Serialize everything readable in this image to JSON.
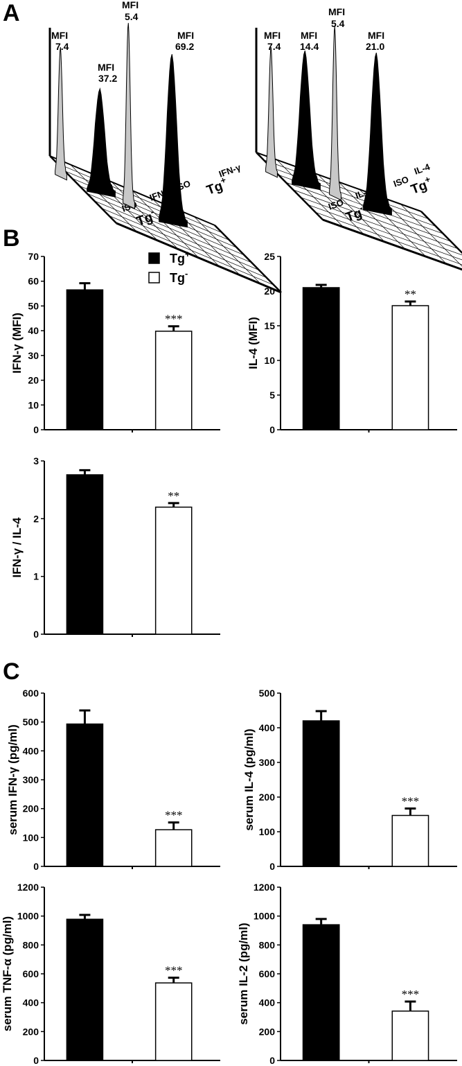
{
  "panels": {
    "a": "A",
    "b": "B",
    "c": "C"
  },
  "legend": {
    "tg_pos": "Tg",
    "tg_pos_sup": "+",
    "tg_neg": "Tg",
    "tg_neg_sup": "-",
    "colors": {
      "tg_pos": "#000000",
      "tg_neg": "#ffffff"
    }
  },
  "histograms": [
    {
      "labels": {
        "iso1": "ISO",
        "cyt1": "IFN-γ",
        "iso2": "ISO",
        "cyt2": "IFN-γ",
        "tg_neg": "Tg",
        "tg_neg_sup": "-",
        "tg_pos": "Tg",
        "tg_pos_sup": "+"
      },
      "mfi": [
        {
          "label": "MFI",
          "value": "7.4",
          "fill": "#c8c8c8"
        },
        {
          "label": "MFI",
          "value": "37.2",
          "fill": "#000000"
        },
        {
          "label": "MFI",
          "value": "5.4",
          "fill": "#c8c8c8"
        },
        {
          "label": "MFI",
          "value": "69.2",
          "fill": "#000000"
        }
      ]
    },
    {
      "labels": {
        "iso1": "ISO",
        "cyt1": "IL-4",
        "iso2": "ISO",
        "cyt2": "IL-4",
        "tg_neg": "Tg",
        "tg_neg_sup": "-",
        "tg_pos": "Tg",
        "tg_pos_sup": "+"
      },
      "mfi": [
        {
          "label": "MFI",
          "value": "7.4",
          "fill": "#c8c8c8"
        },
        {
          "label": "MFI",
          "value": "14.4",
          "fill": "#000000"
        },
        {
          "label": "MFI",
          "value": "5.4",
          "fill": "#c8c8c8"
        },
        {
          "label": "MFI",
          "value": "21.0",
          "fill": "#000000"
        }
      ]
    }
  ],
  "chart_data": [
    {
      "id": "b_ifng",
      "type": "bar",
      "ylabel": "IFN-γ (MFI)",
      "ylim": [
        0,
        70
      ],
      "ticks": [
        0,
        10,
        20,
        30,
        40,
        50,
        60,
        70
      ],
      "categories": [
        "Tg+",
        "Tg-"
      ],
      "values": [
        56.5,
        39.8
      ],
      "errors": [
        2.7,
        2.0
      ],
      "sig": [
        "",
        "***"
      ]
    },
    {
      "id": "b_il4",
      "type": "bar",
      "ylabel": "IL-4 (MFI)",
      "ylim": [
        0,
        25
      ],
      "ticks": [
        0,
        5,
        10,
        15,
        20,
        25
      ],
      "categories": [
        "Tg+",
        "Tg-"
      ],
      "values": [
        20.5,
        17.9
      ],
      "errors": [
        0.4,
        0.6
      ],
      "sig": [
        "",
        "**"
      ]
    },
    {
      "id": "b_ratio",
      "type": "bar",
      "ylabel": "IFN-γ / IL-4",
      "ylim": [
        0,
        3
      ],
      "ticks": [
        0,
        1,
        2,
        3
      ],
      "categories": [
        "Tg+",
        "Tg-"
      ],
      "values": [
        2.76,
        2.2
      ],
      "errors": [
        0.08,
        0.07
      ],
      "sig": [
        "",
        "**"
      ]
    },
    {
      "id": "c_ifng",
      "type": "bar",
      "ylabel": "serum IFN-γ (pg/ml)",
      "ylim": [
        0,
        600
      ],
      "ticks": [
        0,
        100,
        200,
        300,
        400,
        500,
        600
      ],
      "categories": [
        "Tg+",
        "Tg-"
      ],
      "values": [
        493,
        127
      ],
      "errors": [
        47,
        25
      ],
      "sig": [
        "",
        "***"
      ]
    },
    {
      "id": "c_il4",
      "type": "bar",
      "ylabel": "serum IL-4 (pg/ml)",
      "ylim": [
        0,
        500
      ],
      "ticks": [
        0,
        100,
        200,
        300,
        400,
        500
      ],
      "categories": [
        "Tg+",
        "Tg-"
      ],
      "values": [
        420,
        147
      ],
      "errors": [
        28,
        20
      ],
      "sig": [
        "",
        "***"
      ]
    },
    {
      "id": "c_tnfa",
      "type": "bar",
      "ylabel": "serum TNF-α (pg/ml)",
      "ylim": [
        0,
        1200
      ],
      "ticks": [
        0,
        200,
        400,
        600,
        800,
        1000,
        1200
      ],
      "categories": [
        "Tg+",
        "Tg-"
      ],
      "values": [
        978,
        537
      ],
      "errors": [
        30,
        36
      ],
      "sig": [
        "",
        "***"
      ]
    },
    {
      "id": "c_il2",
      "type": "bar",
      "ylabel": "serum IL-2 (pg/ml)",
      "ylim": [
        0,
        1200
      ],
      "ticks": [
        0,
        200,
        400,
        600,
        800,
        1000,
        1200
      ],
      "categories": [
        "Tg+",
        "Tg-"
      ],
      "values": [
        940,
        342
      ],
      "errors": [
        40,
        66
      ],
      "sig": [
        "",
        "***"
      ]
    }
  ]
}
